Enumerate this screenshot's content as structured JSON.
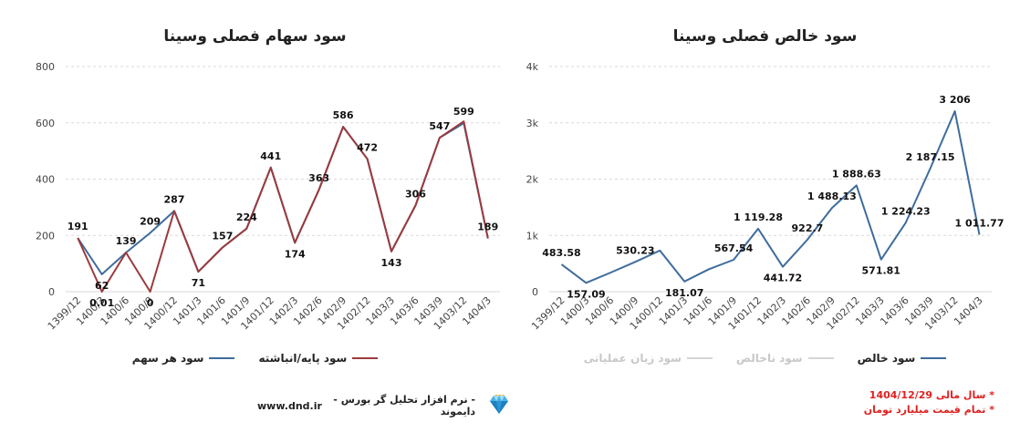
{
  "colors": {
    "blue": "#3e6c9c",
    "red": "#9b3a3d",
    "grid": "#d9d9d9",
    "note_red": "#e02020",
    "legend_inactive": "#c8c8c8"
  },
  "left_chart": {
    "title": "سود سهام فصلی وسینا",
    "legend": [
      {
        "label": "سود پایه/انباشته",
        "color": "#9b3a3d",
        "active": true
      },
      {
        "label": "سود هر سهم",
        "color": "#3e6c9c",
        "active": true
      }
    ]
  },
  "right_chart": {
    "title": "سود خالص فصلی وسینا",
    "legend": [
      {
        "label": "سود خالص",
        "color": "#3e6c9c",
        "active": true
      },
      {
        "label": "سود ناخالص",
        "color": "#d5d5d5",
        "active": false
      },
      {
        "label": "سود زیان عملیاتی",
        "color": "#d5d5d5",
        "active": false
      }
    ]
  },
  "footer": {
    "url": "www.dnd.ir",
    "brand_text": "- نرم افزار تحلیل گر بورس - دایموند",
    "logo_icon": "diamond-icon"
  },
  "notes": [
    "* سال مالی 1404/12/29",
    "* تمام قیمت میلیارد تومان"
  ],
  "chart_data": [
    {
      "type": "line",
      "title": "سود سهام فصلی وسینا",
      "categories": [
        "1399/12",
        "1400/3",
        "1400/6",
        "1400/9",
        "1400/12",
        "1401/3",
        "1401/6",
        "1401/9",
        "1401/12",
        "1402/3",
        "1402/6",
        "1402/9",
        "1402/12",
        "1403/3",
        "1403/6",
        "1403/9",
        "1403/12",
        "1404/3"
      ],
      "ylim": [
        0,
        800
      ],
      "yticks": [
        0,
        200,
        400,
        600,
        800
      ],
      "ytick_labels": [
        "0",
        "200",
        "400",
        "600",
        "800"
      ],
      "grid": true,
      "legend_position": "bottom",
      "series": [
        {
          "name": "سود هر سهم",
          "color": "#3e6c9c",
          "values": [
            191,
            62,
            139,
            209,
            287,
            71,
            157,
            224,
            441,
            174,
            363,
            586,
            472,
            143,
            306,
            547,
            599,
            189
          ],
          "labels": [
            "191",
            "62",
            "139",
            "209",
            "287",
            "71",
            "157",
            "224",
            "441",
            "174",
            "363",
            "586",
            "472",
            "143",
            "306",
            "547",
            "599",
            "189"
          ]
        },
        {
          "name": "سود پایه/انباشته",
          "color": "#9b3a3d",
          "values": [
            191,
            0.01,
            139,
            0,
            287,
            71,
            157,
            224,
            441,
            174,
            363,
            586,
            472,
            143,
            306,
            547,
            605,
            189
          ],
          "labels": [
            "",
            "0.01",
            "",
            "0",
            "",
            "",
            "",
            "",
            "",
            "",
            "",
            "",
            "",
            "",
            "",
            "",
            "",
            ""
          ]
        }
      ]
    },
    {
      "type": "line",
      "title": "سود خالص فصلی وسینا",
      "categories": [
        "1399/12",
        "1400/3",
        "1400/6",
        "1400/9",
        "1400/12",
        "1401/3",
        "1401/6",
        "1401/9",
        "1401/12",
        "1402/3",
        "1402/6",
        "1402/9",
        "1402/12",
        "1403/3",
        "1403/6",
        "1403/9",
        "1403/12",
        "1404/3"
      ],
      "ylim": [
        0,
        4000
      ],
      "yticks": [
        0,
        1000,
        2000,
        3000,
        4000
      ],
      "ytick_labels": [
        "0",
        "1k",
        "2k",
        "3k",
        "4k"
      ],
      "grid": true,
      "legend_position": "bottom",
      "series": [
        {
          "name": "سود خالص",
          "color": "#3e6c9c",
          "values": [
            483.58,
            157.09,
            340,
            530.23,
            730,
            181.07,
            400,
            567.54,
            1119.28,
            441.72,
            922.7,
            1488.13,
            1888.63,
            571.81,
            1224.23,
            2187.15,
            3206,
            1011.77
          ],
          "labels": [
            "483.58",
            "157.09",
            "",
            "530.23",
            "",
            "181.07",
            "",
            "567.54",
            "1 119.28",
            "441.72",
            "922.7",
            "1 488.13",
            "1 888.63",
            "571.81",
            "1 224.23",
            "2 187.15",
            "3 206",
            "1 011.77"
          ]
        }
      ]
    }
  ]
}
